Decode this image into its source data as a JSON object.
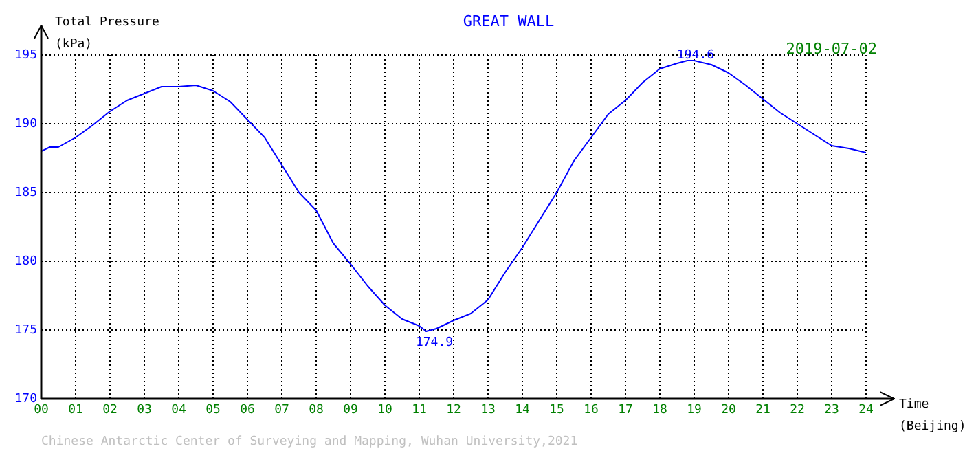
{
  "chart_data": {
    "type": "line",
    "title": "GREAT WALL",
    "xlabel": "Time (Beijing)",
    "ylabel": "Total Pressure (kPa)",
    "x": [
      0,
      0.25,
      0.5,
      1,
      1.5,
      2,
      2.5,
      3,
      3.5,
      4,
      4.5,
      5,
      5.5,
      6,
      6.5,
      7,
      7.5,
      8,
      8.5,
      9,
      9.5,
      10,
      10.5,
      11,
      11.2,
      11.5,
      12,
      12.5,
      13,
      13.5,
      14,
      14.5,
      15,
      15.5,
      16,
      16.5,
      17,
      17.5,
      18,
      18.5,
      18.8,
      19,
      19.5,
      20,
      20.5,
      21,
      21.5,
      22,
      22.5,
      23,
      23.5,
      24
    ],
    "series": [
      {
        "color": "#0000ff",
        "values": [
          188.0,
          188.3,
          188.3,
          189.0,
          189.9,
          190.9,
          191.7,
          192.2,
          192.7,
          192.7,
          192.8,
          192.4,
          191.6,
          190.3,
          189.0,
          187.0,
          185.0,
          183.7,
          181.3,
          179.8,
          178.2,
          176.8,
          175.8,
          175.3,
          174.9,
          175.1,
          175.7,
          176.2,
          177.2,
          179.2,
          181.0,
          183.0,
          185.0,
          187.3,
          189.0,
          190.7,
          191.7,
          193.0,
          194.0,
          194.4,
          194.6,
          194.6,
          194.3,
          193.7,
          192.8,
          191.8,
          190.8,
          190.0,
          189.2,
          188.4,
          188.2,
          187.9
        ]
      }
    ],
    "xlim": [
      0,
      24
    ],
    "ylim": [
      170,
      195
    ],
    "xticks": [
      {
        "value": 0,
        "label": "00"
      },
      {
        "value": 1,
        "label": "01"
      },
      {
        "value": 2,
        "label": "02"
      },
      {
        "value": 3,
        "label": "03"
      },
      {
        "value": 4,
        "label": "04"
      },
      {
        "value": 5,
        "label": "05"
      },
      {
        "value": 6,
        "label": "06"
      },
      {
        "value": 7,
        "label": "07"
      },
      {
        "value": 8,
        "label": "08"
      },
      {
        "value": 9,
        "label": "09"
      },
      10,
      11,
      12,
      13,
      14,
      15,
      16,
      17,
      18,
      19,
      20,
      21,
      22,
      23,
      24
    ],
    "yticks": [
      170,
      175,
      180,
      185,
      190,
      195
    ],
    "grid": true,
    "legend": false,
    "marker": "none",
    "line_style": "solid",
    "annotations": [
      "2019-07-02",
      "Chinese Antarctic Center of Surveying and Mapping, Wuhan University,2021",
      {
        "text": "194.6",
        "x": 18.8,
        "y": 194.6
      },
      {
        "text": "174.9",
        "x": 11.2,
        "y": 174.9
      }
    ]
  }
}
